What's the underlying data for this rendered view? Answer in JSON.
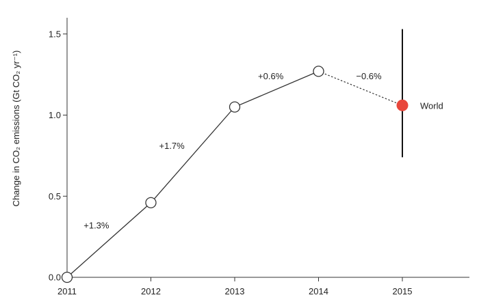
{
  "chart_data": {
    "type": "line",
    "title": "",
    "xlabel": "",
    "ylabel": "Change in CO₂ emissions (Gt CO₂ yr⁻¹)",
    "x": [
      2011,
      2012,
      2013,
      2014,
      2015
    ],
    "xlim": [
      2011,
      2015.8
    ],
    "ylim": [
      0,
      1.6
    ],
    "xticks": [
      "2011",
      "2012",
      "2013",
      "2014",
      "2015"
    ],
    "yticks": [
      "0.0",
      "0.5",
      "1.0",
      "1.5"
    ],
    "ytick_values": [
      0,
      0.5,
      1.0,
      1.5
    ],
    "series": [
      {
        "x": [
          2011,
          2012,
          2013,
          2014
        ],
        "values": [
          0.0,
          0.46,
          1.05,
          1.27
        ],
        "style": "solid",
        "marker": "open-circle"
      }
    ],
    "projection": {
      "name": "World",
      "x": 2015,
      "value": 1.06,
      "error_low": 0.74,
      "error_high": 1.53,
      "color": "#e8473c"
    },
    "segment_labels": [
      {
        "text": "+1.3%",
        "x": 2011.35,
        "y": 0.32
      },
      {
        "text": "+1.7%",
        "x": 2012.25,
        "y": 0.81
      },
      {
        "text": "+0.6%",
        "x": 2013.43,
        "y": 1.24
      },
      {
        "text": "−0.6%",
        "x": 2014.6,
        "y": 1.24
      }
    ],
    "grid": false,
    "legend": "none"
  }
}
